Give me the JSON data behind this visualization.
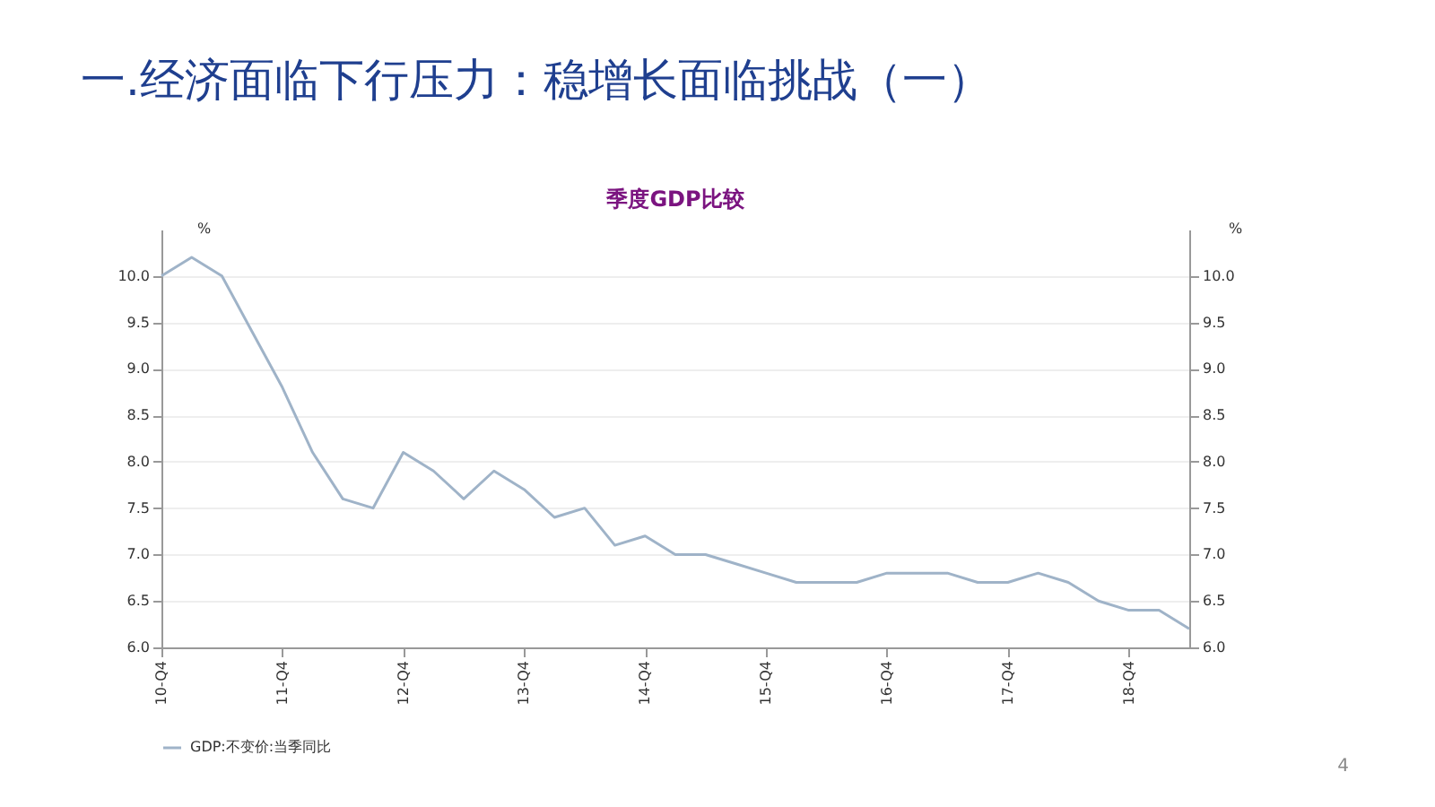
{
  "chart_data": {
    "type": "line",
    "title": "一.经济面临下行压力：稳增长面临挑战（一）",
    "subtitle": "季度GDP比较",
    "ylabel": "%",
    "y2label": "%",
    "categories": [
      "10-Q4",
      null,
      null,
      null,
      "11-Q4",
      null,
      null,
      null,
      "12-Q4",
      null,
      null,
      null,
      "13-Q4",
      null,
      null,
      null,
      "14-Q4",
      null,
      null,
      null,
      "15-Q4",
      null,
      null,
      null,
      "16-Q4",
      null,
      null,
      null,
      "17-Q4",
      null,
      null,
      null,
      "18-Q4",
      null,
      null
    ],
    "series": [
      {
        "name": "GDP:不变价:当季同比",
        "color": "#9fb3c8",
        "values": [
          10.0,
          10.2,
          10.0,
          9.4,
          8.8,
          8.1,
          7.6,
          7.5,
          8.1,
          7.9,
          7.6,
          7.9,
          7.7,
          7.4,
          7.5,
          7.1,
          7.2,
          7.0,
          7.0,
          6.9,
          6.8,
          6.7,
          6.7,
          6.7,
          6.8,
          6.8,
          6.8,
          6.7,
          6.7,
          6.8,
          6.7,
          6.5,
          6.4,
          6.4,
          6.2
        ]
      }
    ],
    "ylim": [
      6,
      10.5
    ],
    "yticks": [
      {
        "value": 6,
        "label": "6.0"
      },
      {
        "value": 6.5,
        "label": "6.5"
      },
      {
        "value": 7,
        "label": "7.0"
      },
      {
        "value": 7.5,
        "label": "7.5"
      },
      {
        "value": 8,
        "label": "8.0"
      },
      {
        "value": 8.5,
        "label": "8.5"
      },
      {
        "value": 9,
        "label": "9.0"
      },
      {
        "value": 9.5,
        "label": "9.5"
      },
      {
        "value": 10,
        "label": "10.0"
      }
    ],
    "y2lim": [
      6,
      10.5
    ],
    "y2ticks": [
      {
        "value": 6,
        "label": "6.0"
      },
      {
        "value": 6.5,
        "label": "6.5"
      },
      {
        "value": 7,
        "label": "7.0"
      },
      {
        "value": 7.5,
        "label": "7.5"
      },
      {
        "value": 8,
        "label": "8.0"
      },
      {
        "value": 8.5,
        "label": "8.5"
      },
      {
        "value": 9,
        "label": "9.0"
      },
      {
        "value": 9.5,
        "label": "9.5"
      },
      {
        "value": 10,
        "label": "10.0"
      }
    ],
    "grid": "y",
    "legend": "bottom",
    "annotations": [
      "4"
    ]
  }
}
